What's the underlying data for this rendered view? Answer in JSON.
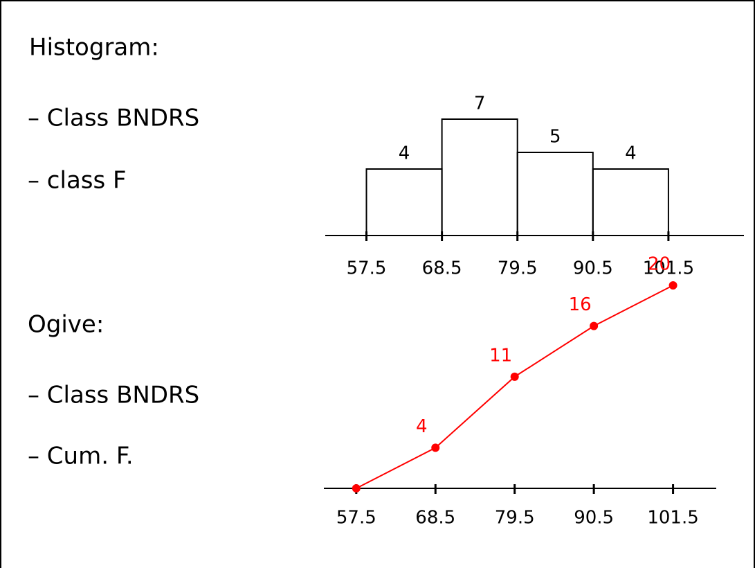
{
  "notes": {
    "histogram_heading": "Histogram:",
    "histogram_items": [
      "– Class BNDRS",
      "– class F"
    ],
    "ogive_heading": "Ogive:",
    "ogive_items": [
      "– Class BNDRS",
      "– Cum. F."
    ]
  },
  "chart_data": [
    {
      "type": "histogram",
      "bins": [
        57.5,
        68.5,
        79.5,
        90.5,
        101.5
      ],
      "values": [
        4,
        7,
        5,
        4
      ],
      "color": "#000000",
      "xlim": [
        51.5,
        112.5
      ],
      "xticks": [
        57.5,
        68.5,
        79.5,
        90.5,
        101.5
      ]
    },
    {
      "type": "line",
      "x": [
        57.5,
        68.5,
        79.5,
        90.5,
        101.5
      ],
      "values": [
        0,
        4,
        11,
        16,
        20
      ],
      "value_labels": [
        null,
        "4",
        "11",
        "16",
        "20"
      ],
      "color": "#ff0000",
      "xlim": [
        53,
        107.5
      ],
      "xticks": [
        57.5,
        68.5,
        79.5,
        90.5,
        101.5
      ]
    }
  ]
}
